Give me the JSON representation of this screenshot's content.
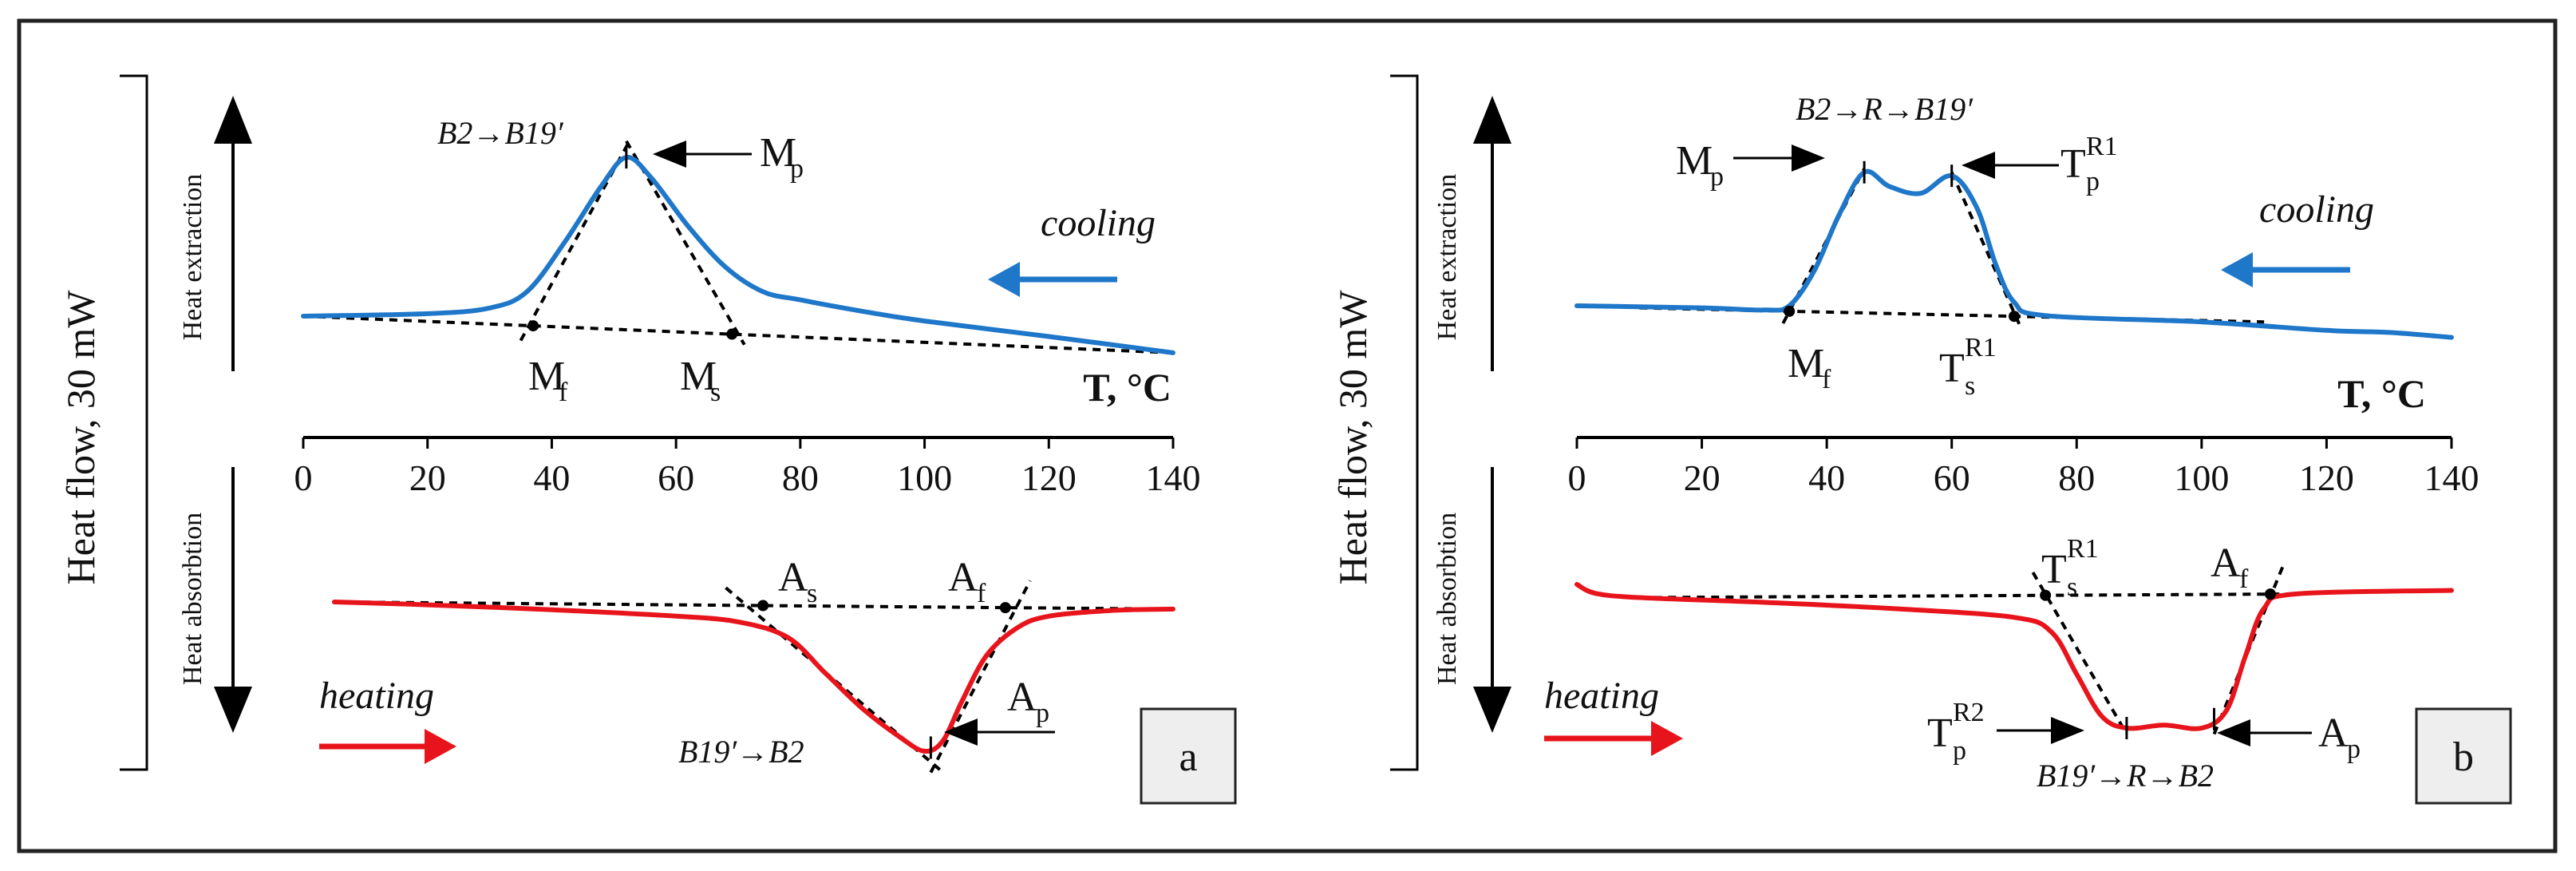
{
  "colors": {
    "cooling": "#1f77c9",
    "heating": "#e8141b",
    "ink": "#111111",
    "panel_label_bg": "#eeeeee"
  },
  "y_axis": {
    "main_label": "Heat flow, 30 mW",
    "top_label": "Heat extraction",
    "bottom_label": "Heat absorbtion"
  },
  "chart_data": [
    {
      "type": "line",
      "panel": "a",
      "xlabel": "T, °C",
      "xlim": [
        0,
        140
      ],
      "xticks": [
        "0",
        "20",
        "40",
        "60",
        "80",
        "100",
        "120",
        "140"
      ],
      "cooling_label": "cooling",
      "heating_label": "heating",
      "cooling_transition": "B2→B19′",
      "heating_transition": "B19′→B2",
      "series": [
        {
          "name": "cooling",
          "x": [
            0,
            20,
            30,
            36,
            42,
            48,
            52,
            56,
            62,
            68,
            74,
            80,
            90,
            100,
            120,
            140
          ],
          "y": [
            0,
            0.3,
            1,
            3,
            9,
            16,
            19.5,
            17,
            11,
            6,
            3,
            2,
            0.6,
            -0.6,
            -2.5,
            -4.5
          ]
        },
        {
          "name": "heating",
          "x": [
            5,
            20,
            40,
            60,
            70,
            78,
            84,
            90,
            96,
            100,
            103,
            106,
            110,
            115,
            120,
            130,
            140
          ],
          "y": [
            0,
            -0.4,
            -1.1,
            -2,
            -2.8,
            -5,
            -10,
            -15,
            -19,
            -21,
            -19.5,
            -14,
            -7.5,
            -3.6,
            -2,
            -1.2,
            -1
          ]
        }
      ],
      "points": [
        {
          "label": "Mf",
          "main": "M",
          "sub": "f",
          "x": 37
        },
        {
          "label": "Ms",
          "main": "M",
          "sub": "s",
          "x": 69
        },
        {
          "label": "Mp",
          "main": "M",
          "sub": "p",
          "x": 52
        },
        {
          "label": "As",
          "main": "A",
          "sub": "s",
          "x": 74
        },
        {
          "label": "Af",
          "main": "A",
          "sub": "f",
          "x": 113
        },
        {
          "label": "Ap",
          "main": "A",
          "sub": "p",
          "x": 101
        }
      ]
    },
    {
      "type": "line",
      "panel": "b",
      "xlabel": "T, °C",
      "xlim": [
        0,
        140
      ],
      "xticks": [
        "0",
        "20",
        "40",
        "60",
        "80",
        "100",
        "120",
        "140"
      ],
      "cooling_label": "cooling",
      "heating_label": "heating",
      "cooling_transition": "B2→R→B19′",
      "heating_transition": "B19′→R→B2",
      "series": [
        {
          "name": "cooling",
          "x": [
            0,
            20,
            30,
            34,
            38,
            42,
            46,
            50,
            55,
            60,
            64,
            67,
            70,
            75,
            100,
            120,
            130,
            140
          ],
          "y": [
            0,
            -0.3,
            -0.6,
            0,
            5,
            13,
            19,
            17,
            16,
            18.5,
            14,
            6,
            0.5,
            -1.4,
            -2.3,
            -3.5,
            -3.8,
            -4.5
          ]
        },
        {
          "name": "heating",
          "x": [
            0,
            3,
            10,
            30,
            50,
            70,
            76,
            80,
            84,
            88,
            94,
            100,
            104,
            107,
            110,
            115,
            140
          ],
          "y": [
            0,
            -1.5,
            -2.2,
            -3,
            -4,
            -5.5,
            -8,
            -15,
            -22,
            -24,
            -23.5,
            -24,
            -21,
            -12,
            -4,
            -1.6,
            -1
          ]
        }
      ],
      "points": [
        {
          "label": "Mf",
          "main": "M",
          "sub": "f",
          "x": 34
        },
        {
          "label": "Mp",
          "main": "M",
          "sub": "p",
          "x": 46
        },
        {
          "label": "Tp^R1",
          "main": "T",
          "sub": "p",
          "sup": "R1",
          "x": 60
        },
        {
          "label": "Ts^R1 (cooling)",
          "main": "T",
          "sub": "s",
          "sup": "R1",
          "x": 70
        },
        {
          "label": "Ts^R1 (heating)",
          "main": "T",
          "sub": "s",
          "sup": "R1",
          "x": 75
        },
        {
          "label": "Af",
          "main": "A",
          "sub": "f",
          "x": 111
        },
        {
          "label": "Tp^R2",
          "main": "T",
          "sub": "p",
          "sup": "R2",
          "x": 88
        },
        {
          "label": "Ap",
          "main": "A",
          "sub": "p",
          "x": 102
        }
      ]
    }
  ]
}
